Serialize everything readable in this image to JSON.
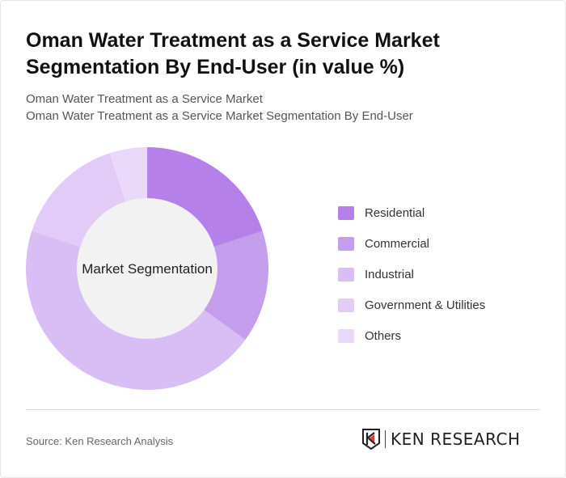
{
  "title": "Oman Water Treatment as a Service Market Segmentation By End-User (in value %)",
  "subtitle_1": "Oman Water Treatment as a Service Market",
  "subtitle_2": "Oman Water Treatment as a Service Market Segmentation By End-User",
  "source": "Source: Ken Research Analysis",
  "logo_text": "KEN RESEARCH",
  "chart_data": {
    "type": "pie",
    "variant": "donut",
    "center_label": "Market Segmentation",
    "categories": [
      "Residential",
      "Commercial",
      "Industrial",
      "Government & Utilities",
      "Others"
    ],
    "values": [
      20,
      15,
      45,
      15,
      5
    ],
    "colors": [
      "#b580ea",
      "#c59ded",
      "#d9bef5",
      "#e2cbf6",
      "#ead8fb"
    ],
    "legend_position": "right"
  }
}
